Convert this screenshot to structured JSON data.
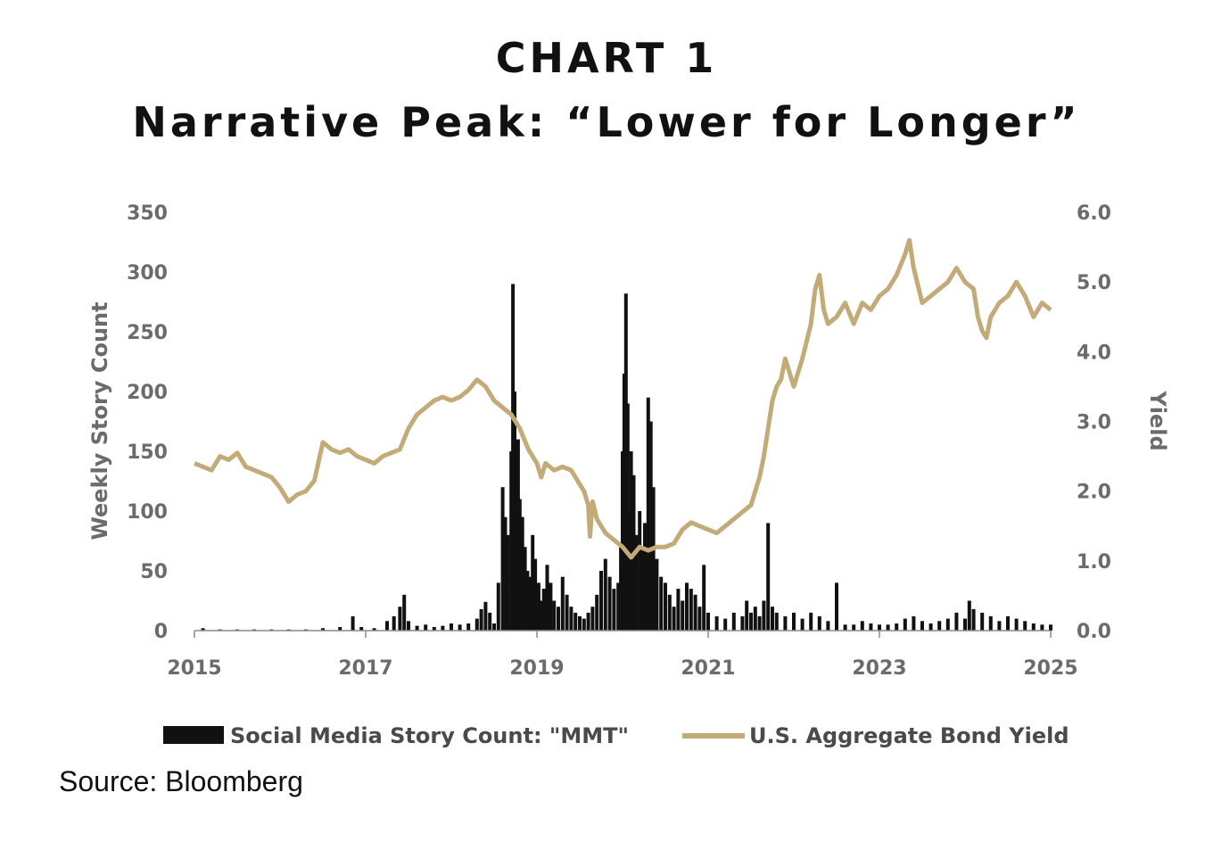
{
  "title": "CHART 1",
  "subtitle": "Narrative Peak: “Lower for Longer”",
  "source": "Source: Bloomberg",
  "colors": {
    "bars": "#111111",
    "line": "#c2ab78",
    "axis_text": "#6b6b6b"
  },
  "chart_data": {
    "type": "bar",
    "title": "Narrative Peak: “Lower for Longer”",
    "y_left_label": "Weekly Story Count",
    "y_right_label": "Yield",
    "x_ticks": [
      "2015",
      "2017",
      "2019",
      "2021",
      "2023",
      "2025"
    ],
    "x_range": [
      2015,
      2025
    ],
    "y_left_ticks": [
      "0",
      "50",
      "100",
      "150",
      "200",
      "250",
      "300",
      "350"
    ],
    "y_left_range": [
      0,
      350
    ],
    "y_right_ticks": [
      "0.0",
      "1.0",
      "2.0",
      "3.0",
      "4.0",
      "5.0",
      "6.0"
    ],
    "y_right_range": [
      0,
      6
    ],
    "legend_placement": "bottom",
    "series": [
      {
        "name": "Social Media Story Count: \"MMT\"",
        "kind": "bar",
        "axis": "left",
        "points": [
          [
            2015.1,
            2
          ],
          [
            2015.3,
            1
          ],
          [
            2015.5,
            1
          ],
          [
            2015.7,
            1
          ],
          [
            2015.9,
            1
          ],
          [
            2016.1,
            1
          ],
          [
            2016.3,
            1
          ],
          [
            2016.5,
            2
          ],
          [
            2016.7,
            3
          ],
          [
            2016.85,
            12
          ],
          [
            2016.95,
            3
          ],
          [
            2017.1,
            2
          ],
          [
            2017.25,
            8
          ],
          [
            2017.33,
            12
          ],
          [
            2017.4,
            20
          ],
          [
            2017.45,
            30
          ],
          [
            2017.5,
            8
          ],
          [
            2017.6,
            4
          ],
          [
            2017.7,
            5
          ],
          [
            2017.8,
            3
          ],
          [
            2017.9,
            4
          ],
          [
            2018.0,
            6
          ],
          [
            2018.1,
            5
          ],
          [
            2018.2,
            6
          ],
          [
            2018.3,
            10
          ],
          [
            2018.35,
            18
          ],
          [
            2018.4,
            24
          ],
          [
            2018.45,
            15
          ],
          [
            2018.5,
            6
          ],
          [
            2018.55,
            40
          ],
          [
            2018.6,
            120
          ],
          [
            2018.63,
            95
          ],
          [
            2018.66,
            80
          ],
          [
            2018.7,
            150
          ],
          [
            2018.72,
            290
          ],
          [
            2018.74,
            200
          ],
          [
            2018.76,
            150
          ],
          [
            2018.78,
            160
          ],
          [
            2018.8,
            110
          ],
          [
            2018.83,
            95
          ],
          [
            2018.86,
            70
          ],
          [
            2018.89,
            50
          ],
          [
            2018.92,
            45
          ],
          [
            2018.95,
            80
          ],
          [
            2018.98,
            60
          ],
          [
            2019.02,
            40
          ],
          [
            2019.05,
            25
          ],
          [
            2019.08,
            35
          ],
          [
            2019.12,
            55
          ],
          [
            2019.16,
            40
          ],
          [
            2019.2,
            25
          ],
          [
            2019.25,
            20
          ],
          [
            2019.3,
            45
          ],
          [
            2019.35,
            30
          ],
          [
            2019.4,
            20
          ],
          [
            2019.45,
            15
          ],
          [
            2019.5,
            12
          ],
          [
            2019.55,
            10
          ],
          [
            2019.6,
            15
          ],
          [
            2019.65,
            20
          ],
          [
            2019.7,
            30
          ],
          [
            2019.75,
            50
          ],
          [
            2019.8,
            60
          ],
          [
            2019.85,
            45
          ],
          [
            2019.9,
            35
          ],
          [
            2019.95,
            40
          ],
          [
            2019.98,
            70
          ],
          [
            2020.0,
            150
          ],
          [
            2020.02,
            215
          ],
          [
            2020.04,
            282
          ],
          [
            2020.06,
            190
          ],
          [
            2020.08,
            100
          ],
          [
            2020.1,
            150
          ],
          [
            2020.13,
            130
          ],
          [
            2020.16,
            80
          ],
          [
            2020.2,
            100
          ],
          [
            2020.23,
            70
          ],
          [
            2020.26,
            90
          ],
          [
            2020.3,
            195
          ],
          [
            2020.33,
            175
          ],
          [
            2020.36,
            120
          ],
          [
            2020.4,
            60
          ],
          [
            2020.45,
            45
          ],
          [
            2020.5,
            40
          ],
          [
            2020.55,
            30
          ],
          [
            2020.6,
            20
          ],
          [
            2020.65,
            35
          ],
          [
            2020.7,
            25
          ],
          [
            2020.75,
            40
          ],
          [
            2020.8,
            35
          ],
          [
            2020.85,
            30
          ],
          [
            2020.9,
            20
          ],
          [
            2020.95,
            55
          ],
          [
            2021.0,
            15
          ],
          [
            2021.1,
            12
          ],
          [
            2021.2,
            10
          ],
          [
            2021.3,
            15
          ],
          [
            2021.4,
            12
          ],
          [
            2021.45,
            25
          ],
          [
            2021.5,
            15
          ],
          [
            2021.55,
            20
          ],
          [
            2021.6,
            12
          ],
          [
            2021.65,
            25
          ],
          [
            2021.7,
            90
          ],
          [
            2021.75,
            20
          ],
          [
            2021.8,
            15
          ],
          [
            2021.9,
            12
          ],
          [
            2022.0,
            15
          ],
          [
            2022.1,
            10
          ],
          [
            2022.2,
            15
          ],
          [
            2022.3,
            12
          ],
          [
            2022.4,
            8
          ],
          [
            2022.5,
            40
          ],
          [
            2022.6,
            5
          ],
          [
            2022.7,
            5
          ],
          [
            2022.8,
            8
          ],
          [
            2022.9,
            6
          ],
          [
            2023.0,
            5
          ],
          [
            2023.1,
            5
          ],
          [
            2023.2,
            6
          ],
          [
            2023.3,
            10
          ],
          [
            2023.4,
            12
          ],
          [
            2023.5,
            8
          ],
          [
            2023.6,
            6
          ],
          [
            2023.7,
            8
          ],
          [
            2023.8,
            10
          ],
          [
            2023.9,
            15
          ],
          [
            2024.0,
            10
          ],
          [
            2024.05,
            25
          ],
          [
            2024.1,
            18
          ],
          [
            2024.2,
            15
          ],
          [
            2024.3,
            12
          ],
          [
            2024.4,
            8
          ],
          [
            2024.5,
            12
          ],
          [
            2024.6,
            10
          ],
          [
            2024.7,
            8
          ],
          [
            2024.8,
            6
          ],
          [
            2024.9,
            5
          ],
          [
            2025.0,
            5
          ]
        ]
      },
      {
        "name": "U.S. Aggregate Bond Yield",
        "kind": "line",
        "axis": "right",
        "points": [
          [
            2015.0,
            2.4
          ],
          [
            2015.1,
            2.35
          ],
          [
            2015.2,
            2.3
          ],
          [
            2015.3,
            2.5
          ],
          [
            2015.4,
            2.45
          ],
          [
            2015.5,
            2.55
          ],
          [
            2015.6,
            2.35
          ],
          [
            2015.7,
            2.3
          ],
          [
            2015.8,
            2.25
          ],
          [
            2015.9,
            2.2
          ],
          [
            2016.0,
            2.05
          ],
          [
            2016.1,
            1.85
          ],
          [
            2016.2,
            1.95
          ],
          [
            2016.3,
            2.0
          ],
          [
            2016.4,
            2.15
          ],
          [
            2016.5,
            2.7
          ],
          [
            2016.6,
            2.6
          ],
          [
            2016.7,
            2.55
          ],
          [
            2016.8,
            2.6
          ],
          [
            2016.9,
            2.5
          ],
          [
            2017.0,
            2.45
          ],
          [
            2017.1,
            2.4
          ],
          [
            2017.2,
            2.5
          ],
          [
            2017.3,
            2.55
          ],
          [
            2017.4,
            2.6
          ],
          [
            2017.5,
            2.9
          ],
          [
            2017.6,
            3.1
          ],
          [
            2017.7,
            3.2
          ],
          [
            2017.8,
            3.3
          ],
          [
            2017.9,
            3.35
          ],
          [
            2018.0,
            3.3
          ],
          [
            2018.1,
            3.35
          ],
          [
            2018.2,
            3.45
          ],
          [
            2018.3,
            3.6
          ],
          [
            2018.4,
            3.5
          ],
          [
            2018.5,
            3.3
          ],
          [
            2018.6,
            3.2
          ],
          [
            2018.7,
            3.1
          ],
          [
            2018.8,
            2.9
          ],
          [
            2018.9,
            2.6
          ],
          [
            2019.0,
            2.4
          ],
          [
            2019.05,
            2.2
          ],
          [
            2019.1,
            2.4
          ],
          [
            2019.2,
            2.3
          ],
          [
            2019.3,
            2.35
          ],
          [
            2019.4,
            2.3
          ],
          [
            2019.5,
            2.1
          ],
          [
            2019.55,
            2.0
          ],
          [
            2019.6,
            1.8
          ],
          [
            2019.62,
            1.35
          ],
          [
            2019.65,
            1.85
          ],
          [
            2019.7,
            1.6
          ],
          [
            2019.8,
            1.4
          ],
          [
            2019.9,
            1.3
          ],
          [
            2020.0,
            1.2
          ],
          [
            2020.1,
            1.05
          ],
          [
            2020.2,
            1.2
          ],
          [
            2020.3,
            1.15
          ],
          [
            2020.4,
            1.2
          ],
          [
            2020.5,
            1.2
          ],
          [
            2020.6,
            1.25
          ],
          [
            2020.7,
            1.45
          ],
          [
            2020.8,
            1.55
          ],
          [
            2020.9,
            1.5
          ],
          [
            2021.0,
            1.45
          ],
          [
            2021.1,
            1.4
          ],
          [
            2021.2,
            1.5
          ],
          [
            2021.3,
            1.6
          ],
          [
            2021.4,
            1.7
          ],
          [
            2021.5,
            1.8
          ],
          [
            2021.6,
            2.2
          ],
          [
            2021.65,
            2.5
          ],
          [
            2021.7,
            2.9
          ],
          [
            2021.75,
            3.3
          ],
          [
            2021.8,
            3.5
          ],
          [
            2021.85,
            3.6
          ],
          [
            2021.9,
            3.9
          ],
          [
            2022.0,
            3.5
          ],
          [
            2022.1,
            3.9
          ],
          [
            2022.2,
            4.4
          ],
          [
            2022.25,
            4.9
          ],
          [
            2022.3,
            5.1
          ],
          [
            2022.35,
            4.6
          ],
          [
            2022.4,
            4.4
          ],
          [
            2022.5,
            4.5
          ],
          [
            2022.6,
            4.7
          ],
          [
            2022.7,
            4.4
          ],
          [
            2022.8,
            4.7
          ],
          [
            2022.9,
            4.6
          ],
          [
            2023.0,
            4.8
          ],
          [
            2023.1,
            4.9
          ],
          [
            2023.2,
            5.1
          ],
          [
            2023.3,
            5.4
          ],
          [
            2023.35,
            5.6
          ],
          [
            2023.4,
            5.2
          ],
          [
            2023.5,
            4.7
          ],
          [
            2023.6,
            4.8
          ],
          [
            2023.7,
            4.9
          ],
          [
            2023.8,
            5.0
          ],
          [
            2023.9,
            5.2
          ],
          [
            2024.0,
            5.0
          ],
          [
            2024.1,
            4.9
          ],
          [
            2024.15,
            4.5
          ],
          [
            2024.2,
            4.3
          ],
          [
            2024.25,
            4.2
          ],
          [
            2024.3,
            4.5
          ],
          [
            2024.4,
            4.7
          ],
          [
            2024.5,
            4.8
          ],
          [
            2024.6,
            5.0
          ],
          [
            2024.7,
            4.8
          ],
          [
            2024.8,
            4.5
          ],
          [
            2024.9,
            4.7
          ],
          [
            2025.0,
            4.6
          ]
        ]
      }
    ]
  }
}
